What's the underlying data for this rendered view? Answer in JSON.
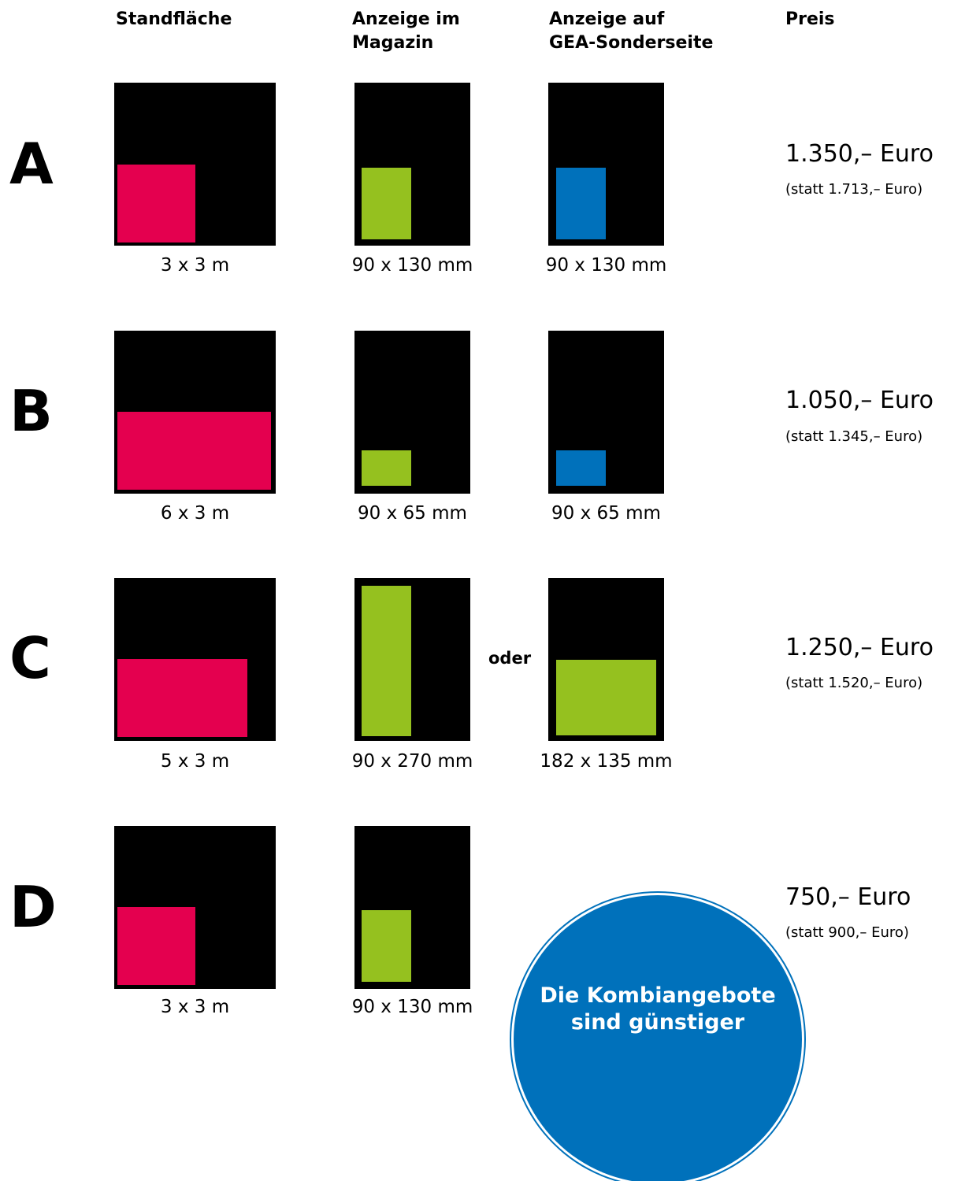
{
  "colors": {
    "standflaeche": "#e4004f",
    "magazin": "#95c11f",
    "sonderseite": "#0071bb",
    "frame": "#000000"
  },
  "headers": {
    "standflaeche": "Standfläche",
    "magazin": "Anzeige im\nMagazin",
    "sonderseite": "Anzeige auf\nGEA-Sonderseite",
    "preis": "Preis"
  },
  "offers": [
    {
      "letter": "A",
      "standflaeche": "3 x 3 m",
      "magazin": "90 x 130 mm",
      "sonderseite": "90 x 130 mm",
      "price": "1.350,– Euro",
      "statt": "(statt 1.713,– Euro)"
    },
    {
      "letter": "B",
      "standflaeche": "6 x 3 m",
      "magazin": "90 x 65 mm",
      "sonderseite": "90 x 65 mm",
      "price": "1.050,– Euro",
      "statt": "(statt 1.345,– Euro)"
    },
    {
      "letter": "C",
      "standflaeche": "5 x 3 m",
      "magazin": "90 x 270 mm",
      "oder": "oder",
      "sonderseite": "182 x 135 mm",
      "price": "1.250,– Euro",
      "statt": "(statt 1.520,– Euro)"
    },
    {
      "letter": "D",
      "standflaeche": "3 x 3 m",
      "magazin": "90 x 130 mm",
      "price": "750,– Euro",
      "statt": "(statt 900,– Euro)"
    }
  ],
  "badge": {
    "text": "Die Kombiangebote\nsind günstiger"
  }
}
